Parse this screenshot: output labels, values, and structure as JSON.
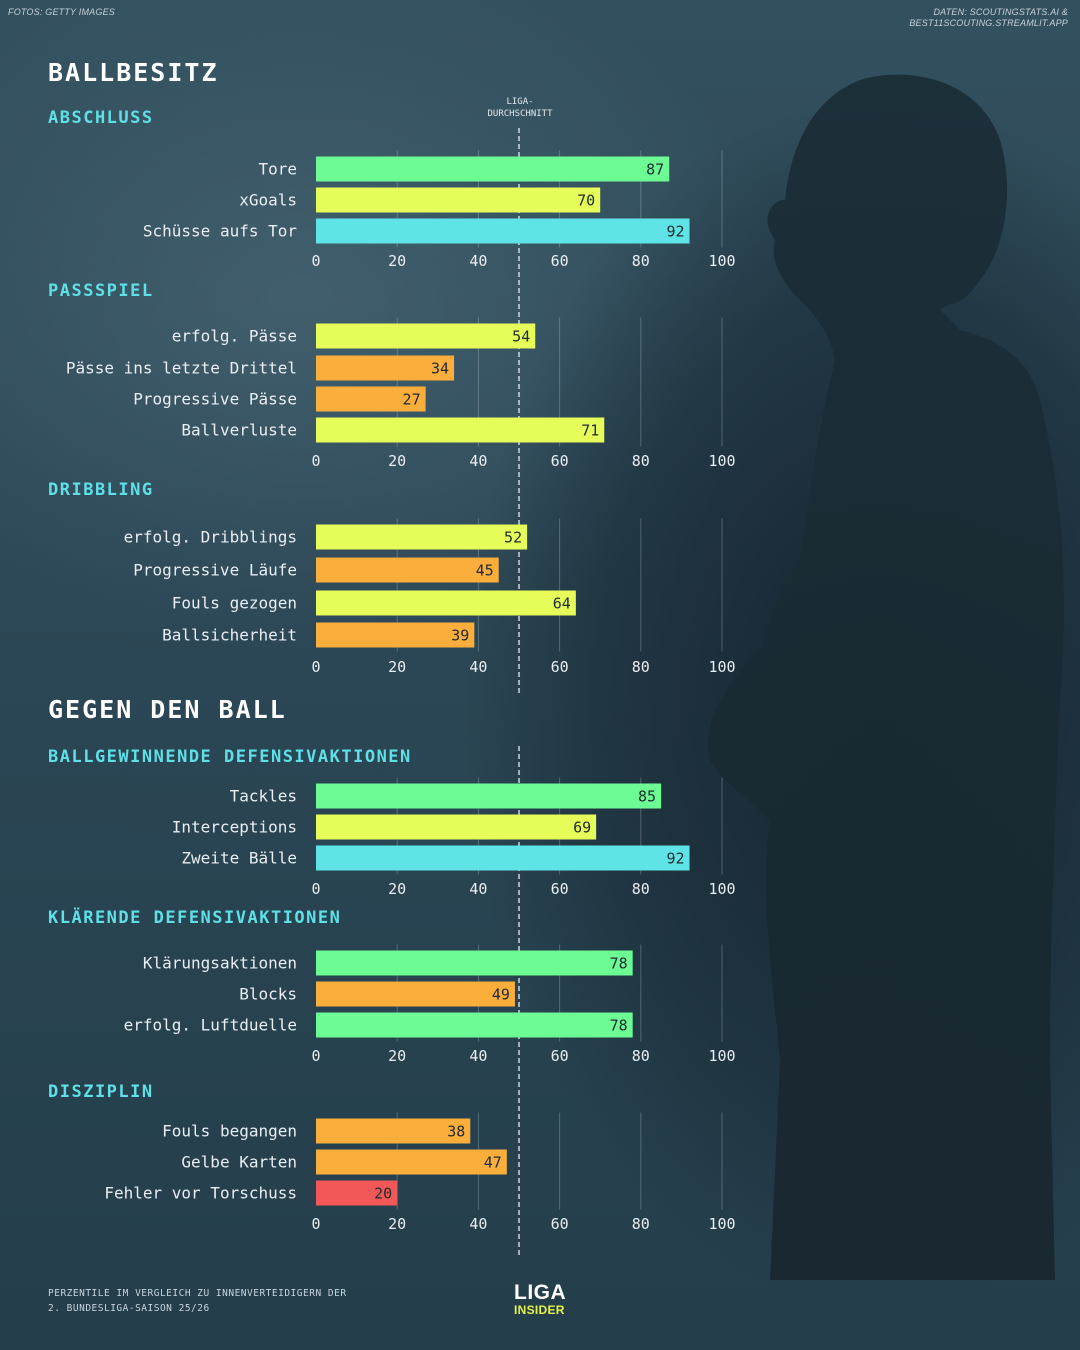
{
  "credits": {
    "photo": "FOTOS: GETTY IMAGES",
    "data_line1": "DATEN: SCOUTINGSTATS.AI &",
    "data_line2": "BEST11SCOUTING.STREAMLIT.APP"
  },
  "sections": {
    "ballbesitz": "BALLBESITZ",
    "gegen_den_ball": "GEGEN DEN BALL"
  },
  "avg_label": {
    "line1": "LIGA-",
    "line2": "DURCHSCHNITT"
  },
  "colors": {
    "green": "#6dfb94",
    "yellow": "#e6fc58",
    "cyan": "#5ee4e6",
    "orange": "#fcae3c",
    "red": "#f25858"
  },
  "chart_data": {
    "type": "bar",
    "orientation": "horizontal",
    "xlim": [
      0,
      100
    ],
    "ticks": [
      0,
      20,
      40,
      60,
      80,
      100
    ],
    "average_line": 50,
    "groups": [
      {
        "title": "ABSCHLUSS",
        "bars": [
          {
            "label": "Tore",
            "value": 87,
            "color": "green"
          },
          {
            "label": "xGoals",
            "value": 70,
            "color": "yellow"
          },
          {
            "label": "Schüsse aufs Tor",
            "value": 92,
            "color": "cyan"
          }
        ]
      },
      {
        "title": "PASSSPIEL",
        "bars": [
          {
            "label": "erfolg. Pässe",
            "value": 54,
            "color": "yellow"
          },
          {
            "label": "Pässe ins letzte Drittel",
            "value": 34,
            "color": "orange"
          },
          {
            "label": "Progressive Pässe",
            "value": 27,
            "color": "orange"
          },
          {
            "label": "Ballverluste",
            "value": 71,
            "color": "yellow"
          }
        ]
      },
      {
        "title": "DRIBBLING",
        "bars": [
          {
            "label": "erfolg. Dribblings",
            "value": 52,
            "color": "yellow"
          },
          {
            "label": "Progressive Läufe",
            "value": 45,
            "color": "orange"
          },
          {
            "label": "Fouls gezogen",
            "value": 64,
            "color": "yellow"
          },
          {
            "label": "Ballsicherheit",
            "value": 39,
            "color": "orange"
          }
        ]
      },
      {
        "title": "BALLGEWINNENDE DEFENSIVAKTIONEN",
        "bars": [
          {
            "label": "Tackles",
            "value": 85,
            "color": "green"
          },
          {
            "label": "Interceptions",
            "value": 69,
            "color": "yellow"
          },
          {
            "label": "Zweite Bälle",
            "value": 92,
            "color": "cyan"
          }
        ]
      },
      {
        "title": "KLÄRENDE DEFENSIVAKTIONEN",
        "bars": [
          {
            "label": "Klärungsaktionen",
            "value": 78,
            "color": "green"
          },
          {
            "label": "Blocks",
            "value": 49,
            "color": "orange"
          },
          {
            "label": "erfolg. Luftduelle",
            "value": 78,
            "color": "green"
          }
        ]
      },
      {
        "title": "DISZIPLIN",
        "bars": [
          {
            "label": "Fouls begangen",
            "value": 38,
            "color": "orange"
          },
          {
            "label": "Gelbe Karten",
            "value": 47,
            "color": "orange"
          },
          {
            "label": "Fehler vor Torschuss",
            "value": 20,
            "color": "red"
          }
        ]
      }
    ]
  },
  "footnote": {
    "line1": "PERZENTILE IM VERGLEICH ZU INNENVERTEIDIGERN DER",
    "line2": "2. BUNDESLIGA-SAISON 25/26"
  },
  "logo": {
    "line1": "LIGA",
    "line2": "INSIDER"
  }
}
